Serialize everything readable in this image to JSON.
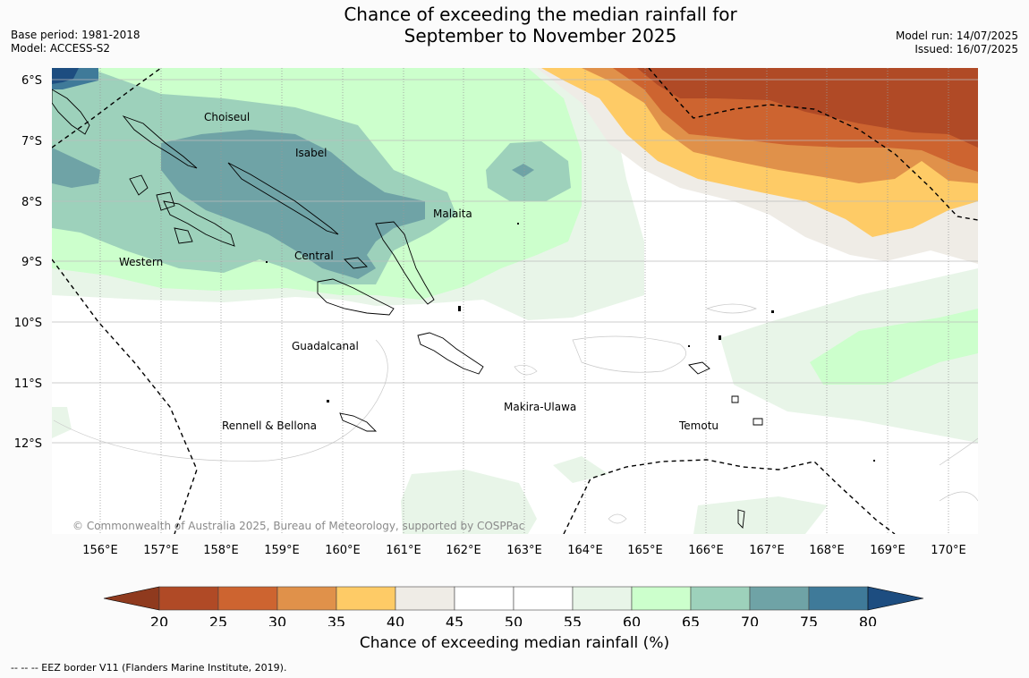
{
  "header": {
    "title_line1": "Chance of exceeding the median rainfall for",
    "title_line2": "September to November 2025",
    "base_period": "Base period: 1981-2018",
    "model": "Model: ACCESS-S2",
    "model_run": "Model run: 14/07/2025",
    "issued": "Issued: 16/07/2025"
  },
  "map": {
    "lat_labels": [
      "6°S",
      "7°S",
      "8°S",
      "9°S",
      "10°S",
      "11°S",
      "12°S"
    ],
    "lon_labels": [
      "156°E",
      "157°E",
      "158°E",
      "159°E",
      "160°E",
      "161°E",
      "162°E",
      "163°E",
      "164°E",
      "165°E",
      "166°E",
      "167°E",
      "168°E",
      "169°E",
      "170°E"
    ],
    "places": [
      {
        "name": "Choiseul"
      },
      {
        "name": "Isabel"
      },
      {
        "name": "Malaita"
      },
      {
        "name": "Western"
      },
      {
        "name": "Central"
      },
      {
        "name": "Guadalcanal"
      },
      {
        "name": "Makira-Ulawa"
      },
      {
        "name": "Temotu"
      },
      {
        "name": "Rennell & Bellona"
      }
    ],
    "copyright": "© Commonwealth of Australia 2025, Bureau of Meteorology, supported by COSPPac"
  },
  "colorbar": {
    "title": "Chance of exceeding median rainfall (%)",
    "ticks": [
      "20",
      "25",
      "30",
      "35",
      "40",
      "45",
      "50",
      "55",
      "60",
      "65",
      "70",
      "75",
      "80"
    ],
    "colors": [
      "#8f3a1e",
      "#b04a26",
      "#cd6430",
      "#e0914a",
      "#fecb66",
      "#efece6",
      "#ffffff",
      "#ffffff",
      "#e8f5e8",
      "#ccffcc",
      "#9dd1bb",
      "#6fa3a6",
      "#3f7a99",
      "#1d4d80"
    ]
  },
  "footnote": "--  --  -- EEZ border V11 (Flanders Marine Institute, 2019)."
}
